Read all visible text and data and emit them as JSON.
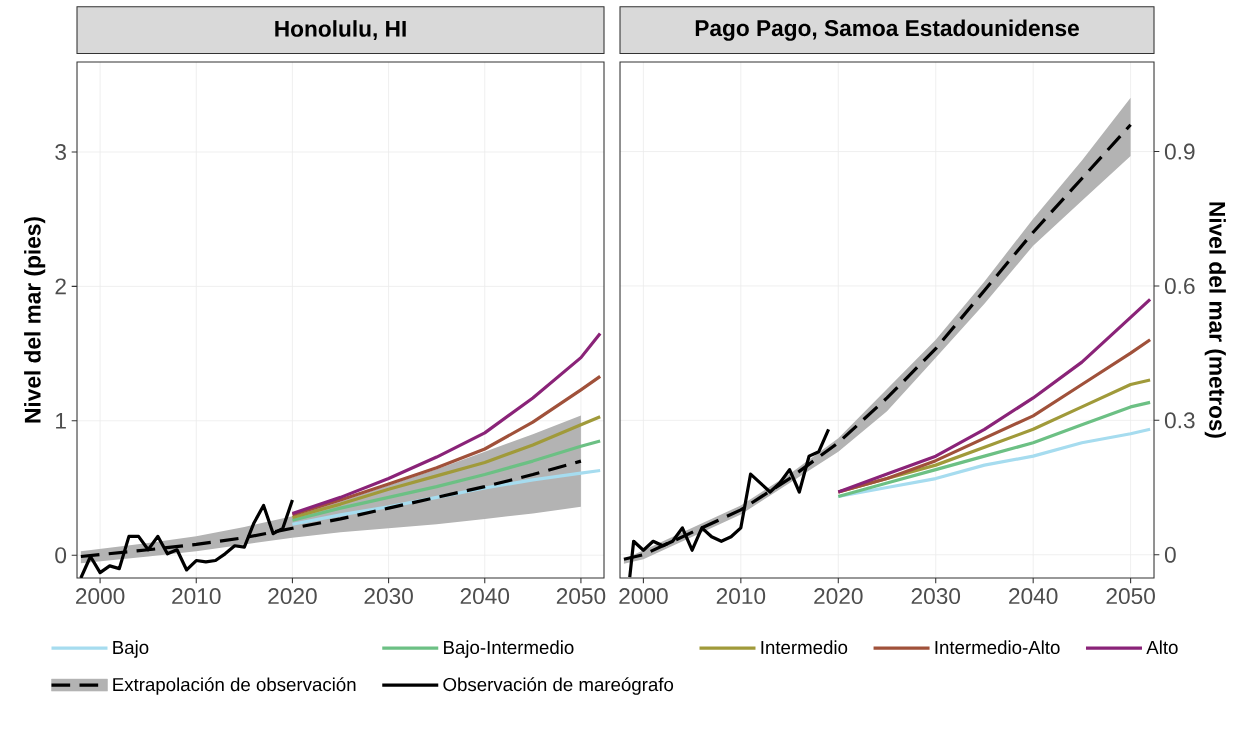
{
  "chart_data": [
    {
      "type": "line",
      "title": "Honolulu, HI",
      "ylabel": "Nivel del mar (pies)",
      "xlim": [
        1997.6,
        2052.4
      ],
      "ylim": [
        -0.17,
        3.67
      ],
      "xticks": [
        2000,
        2010,
        2020,
        2030,
        2040,
        2050
      ],
      "yticks": [
        0,
        1,
        2,
        3
      ],
      "grid": true,
      "legend": "bottom",
      "series": [
        {
          "name": "Bajo",
          "color": "#a6dcef",
          "x": [
            2020,
            2025,
            2030,
            2035,
            2040,
            2045,
            2050,
            2052
          ],
          "values": [
            0.23,
            0.3,
            0.36,
            0.43,
            0.5,
            0.56,
            0.61,
            0.63
          ]
        },
        {
          "name": "Bajo-Intermedio",
          "color": "#6cc084",
          "x": [
            2020,
            2025,
            2030,
            2035,
            2040,
            2045,
            2050,
            2052
          ],
          "values": [
            0.26,
            0.35,
            0.43,
            0.51,
            0.6,
            0.7,
            0.81,
            0.85
          ]
        },
        {
          "name": "Intermedio",
          "color": "#a09a3a",
          "x": [
            2020,
            2025,
            2030,
            2035,
            2040,
            2045,
            2050,
            2052
          ],
          "values": [
            0.28,
            0.38,
            0.49,
            0.59,
            0.69,
            0.82,
            0.97,
            1.03
          ]
        },
        {
          "name": "Intermedio-Alto",
          "color": "#a0513a",
          "x": [
            2020,
            2025,
            2030,
            2035,
            2040,
            2045,
            2050,
            2052
          ],
          "values": [
            0.3,
            0.41,
            0.53,
            0.65,
            0.79,
            0.99,
            1.23,
            1.33
          ]
        },
        {
          "name": "Alto",
          "color": "#8a2378",
          "x": [
            2020,
            2025,
            2030,
            2035,
            2040,
            2045,
            2050,
            2052
          ],
          "values": [
            0.31,
            0.43,
            0.57,
            0.73,
            0.91,
            1.17,
            1.47,
            1.65
          ]
        },
        {
          "name": "Extrapolación de observación",
          "color": "#000000",
          "line_style": "dashed",
          "x": [
            1998,
            2005,
            2010,
            2015,
            2020,
            2025,
            2030,
            2035,
            2040,
            2045,
            2050
          ],
          "values": [
            -0.01,
            0.04,
            0.08,
            0.13,
            0.2,
            0.27,
            0.35,
            0.43,
            0.51,
            0.6,
            0.7
          ],
          "lower": [
            -0.06,
            -0.01,
            0.03,
            0.08,
            0.13,
            0.17,
            0.2,
            0.23,
            0.27,
            0.31,
            0.36
          ],
          "upper": [
            0.03,
            0.09,
            0.14,
            0.21,
            0.29,
            0.4,
            0.52,
            0.64,
            0.77,
            0.9,
            1.04
          ]
        },
        {
          "name": "Observación de mareógrafo",
          "color": "#000000",
          "x": [
            1998,
            1999,
            2000,
            2001,
            2002,
            2003,
            2004,
            2005,
            2006,
            2007,
            2008,
            2009,
            2010,
            2011,
            2012,
            2013,
            2014,
            2015,
            2016,
            2017,
            2018,
            2019,
            2020
          ],
          "values": [
            -0.17,
            -0.01,
            -0.13,
            -0.08,
            -0.1,
            0.14,
            0.14,
            0.04,
            0.14,
            0.01,
            0.04,
            -0.11,
            -0.04,
            -0.05,
            -0.04,
            0.01,
            0.07,
            0.06,
            0.24,
            0.37,
            0.16,
            0.2,
            0.41
          ]
        }
      ]
    },
    {
      "type": "line",
      "title": "Pago Pago, Samoa Estadounidense",
      "ylabel": "Nivel del mar (metros)",
      "xlim": [
        1997.6,
        2052.4
      ],
      "ylim": [
        -0.052,
        1.1
      ],
      "xticks": [
        2000,
        2010,
        2020,
        2030,
        2040,
        2050
      ],
      "yticks": [
        0,
        0.3,
        0.6,
        0.9
      ],
      "grid": true,
      "series": [
        {
          "color": "#a6dcef",
          "x": [
            2020,
            2025,
            2030,
            2035,
            2040,
            2045,
            2050,
            2052
          ],
          "values": [
            0.13,
            0.15,
            0.17,
            0.2,
            0.22,
            0.25,
            0.27,
            0.28
          ]
        },
        {
          "color": "#6cc084",
          "x": [
            2020,
            2025,
            2030,
            2035,
            2040,
            2045,
            2050,
            2052
          ],
          "values": [
            0.13,
            0.16,
            0.19,
            0.22,
            0.25,
            0.29,
            0.33,
            0.34
          ]
        },
        {
          "color": "#a09a3a",
          "x": [
            2020,
            2025,
            2030,
            2035,
            2040,
            2045,
            2050,
            2052
          ],
          "values": [
            0.14,
            0.17,
            0.2,
            0.24,
            0.28,
            0.33,
            0.38,
            0.39
          ]
        },
        {
          "color": "#a0513a",
          "x": [
            2020,
            2025,
            2030,
            2035,
            2040,
            2045,
            2050,
            2052
          ],
          "values": [
            0.14,
            0.17,
            0.21,
            0.26,
            0.31,
            0.38,
            0.45,
            0.48
          ]
        },
        {
          "color": "#8a2378",
          "x": [
            2020,
            2025,
            2030,
            2035,
            2040,
            2045,
            2050,
            2052
          ],
          "values": [
            0.14,
            0.18,
            0.22,
            0.28,
            0.35,
            0.43,
            0.53,
            0.57
          ]
        },
        {
          "color": "#000000",
          "line_style": "dashed",
          "x": [
            1998,
            2000,
            2005,
            2010,
            2015,
            2020,
            2025,
            2030,
            2035,
            2040,
            2045,
            2050
          ],
          "values": [
            -0.01,
            0.0,
            0.05,
            0.1,
            0.17,
            0.25,
            0.35,
            0.46,
            0.59,
            0.72,
            0.84,
            0.96
          ],
          "lower": [
            -0.02,
            -0.01,
            0.04,
            0.09,
            0.16,
            0.23,
            0.32,
            0.44,
            0.56,
            0.69,
            0.79,
            0.89
          ],
          "upper": [
            -0.01,
            0.01,
            0.06,
            0.11,
            0.18,
            0.26,
            0.37,
            0.48,
            0.61,
            0.75,
            0.88,
            1.02
          ]
        },
        {
          "color": "#000000",
          "x": [
            1998.6,
            1999,
            2000,
            2001,
            2002,
            2003,
            2004,
            2005,
            2006,
            2007,
            2008,
            2009,
            2010,
            2011,
            2012,
            2013,
            2014,
            2015,
            2016,
            2017,
            2018,
            2019
          ],
          "values": [
            -0.05,
            0.03,
            0.01,
            0.03,
            0.02,
            0.03,
            0.06,
            0.01,
            0.06,
            0.04,
            0.03,
            0.04,
            0.06,
            0.18,
            0.16,
            0.14,
            0.16,
            0.19,
            0.14,
            0.22,
            0.23,
            0.28
          ]
        }
      ]
    }
  ]
}
